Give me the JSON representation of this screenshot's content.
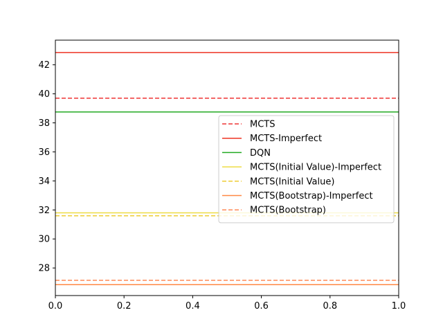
{
  "chart_data": {
    "type": "line",
    "title": "",
    "xlabel": "",
    "ylabel": "",
    "xlim": [
      0.0,
      1.0
    ],
    "ylim": [
      26.1,
      43.7
    ],
    "x_ticks": [
      "0.0",
      "0.2",
      "0.4",
      "0.6",
      "0.8",
      "1.0"
    ],
    "y_ticks": [
      "28",
      "30",
      "32",
      "34",
      "36",
      "38",
      "40",
      "42"
    ],
    "grid": false,
    "legend_position": "center-right",
    "series": [
      {
        "name": "MCTS",
        "value": 39.7,
        "color": "#ee3333",
        "style": "dashed"
      },
      {
        "name": "MCTS-Imperfect",
        "value": 42.85,
        "color": "#ee3322",
        "style": "solid"
      },
      {
        "name": "DQN",
        "value": 38.75,
        "color": "#22aa22",
        "style": "solid"
      },
      {
        "name": "MCTS(Initial Value)-Imperfect",
        "value": 31.8,
        "color": "#eedd44",
        "style": "solid"
      },
      {
        "name": "MCTS(Initial Value)",
        "value": 31.6,
        "color": "#eecc33",
        "style": "dashed"
      },
      {
        "name": "MCTS(Bootstrap)-Imperfect",
        "value": 26.85,
        "color": "#ff8844",
        "style": "solid"
      },
      {
        "name": "MCTS(Bootstrap)",
        "value": 27.15,
        "color": "#ff8855",
        "style": "dashed"
      }
    ]
  }
}
